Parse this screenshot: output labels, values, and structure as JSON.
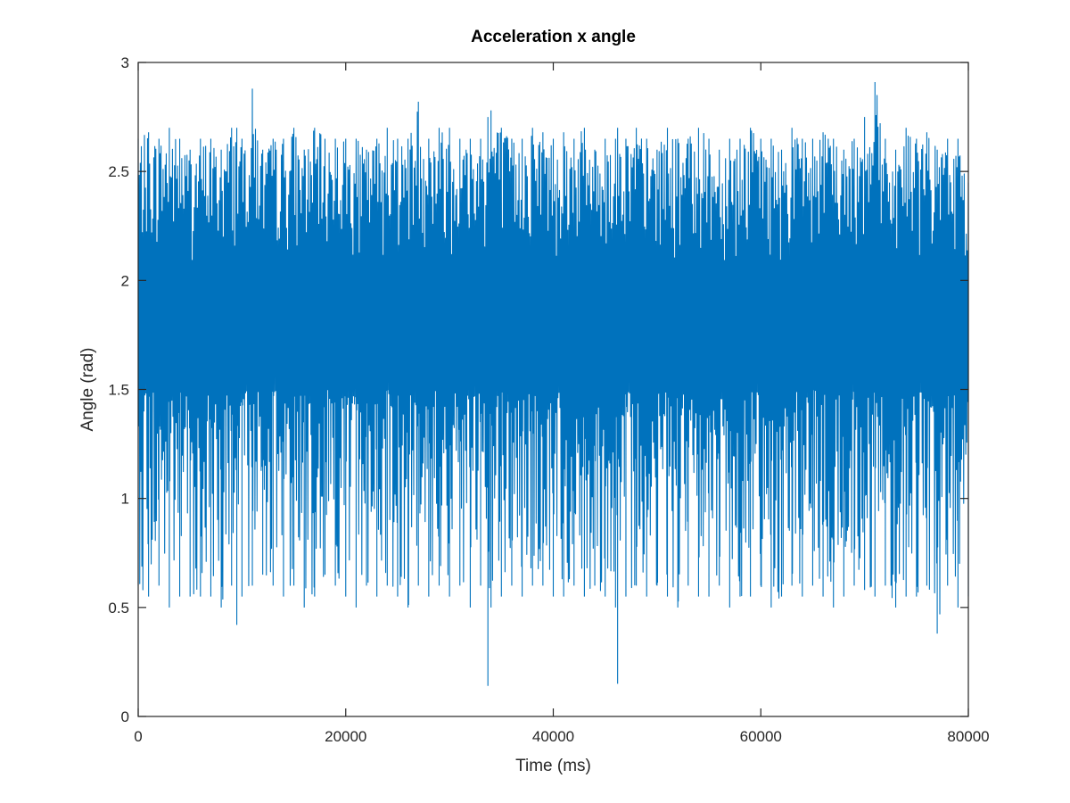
{
  "chart_data": {
    "type": "line",
    "title": "Acceleration x angle",
    "xlabel": "Time (ms)",
    "ylabel": "Angle (rad)",
    "xlim": [
      0,
      80000
    ],
    "ylim": [
      0,
      3
    ],
    "x_ticks": [
      0,
      20000,
      40000,
      60000,
      80000
    ],
    "x_tick_labels": [
      "0",
      "20000",
      "40000",
      "60000",
      "80000"
    ],
    "y_ticks": [
      0,
      0.5,
      1,
      1.5,
      2,
      2.5,
      3
    ],
    "y_tick_labels": [
      "0",
      "0.5",
      "1",
      "1.5",
      "2",
      "2.5",
      "3"
    ],
    "grid": false,
    "legend": "none",
    "series_color": "#0072BD",
    "series": [
      {
        "x": [
          0,
          1000,
          2000,
          3000,
          4000,
          5000,
          6000,
          7000,
          8000,
          9000,
          9500,
          10000,
          11000,
          12000,
          13000,
          14000,
          15000,
          16000,
          17000,
          18000,
          19000,
          20000,
          21000,
          22000,
          23000,
          24000,
          25000,
          26000,
          27000,
          28000,
          29000,
          30000,
          31000,
          32000,
          33000,
          33700,
          34000,
          35000,
          36000,
          37000,
          38000,
          39000,
          40000,
          41000,
          42000,
          43000,
          44000,
          45000,
          46000,
          46200,
          47000,
          48000,
          49000,
          50000,
          51000,
          52000,
          53000,
          54000,
          55000,
          56000,
          57000,
          58000,
          59000,
          60000,
          61000,
          62000,
          63000,
          64000,
          65000,
          66000,
          67000,
          68000,
          69000,
          70000,
          71000,
          72000,
          73000,
          74000,
          75000,
          76000,
          77000,
          78000,
          79000,
          80000
        ],
        "y_min": [
          0.6,
          0.55,
          0.6,
          0.5,
          0.55,
          0.55,
          0.55,
          0.55,
          0.5,
          0.6,
          0.42,
          0.55,
          0.6,
          0.65,
          0.6,
          0.55,
          0.6,
          0.5,
          0.55,
          0.65,
          0.6,
          0.55,
          0.5,
          0.6,
          0.55,
          0.6,
          0.55,
          0.5,
          0.6,
          0.55,
          0.6,
          0.55,
          0.6,
          0.5,
          0.6,
          0.14,
          0.5,
          0.55,
          0.6,
          0.55,
          0.6,
          0.6,
          0.55,
          0.55,
          0.6,
          0.55,
          0.6,
          0.55,
          0.5,
          0.15,
          0.55,
          0.6,
          0.55,
          0.6,
          0.55,
          0.5,
          0.6,
          0.55,
          0.55,
          0.6,
          0.5,
          0.55,
          0.55,
          0.6,
          0.5,
          0.55,
          0.6,
          0.55,
          0.6,
          0.55,
          0.5,
          0.55,
          0.6,
          0.58,
          0.55,
          0.6,
          0.5,
          0.55,
          0.55,
          0.6,
          0.38,
          0.6,
          0.5,
          0.55
        ],
        "y_max": [
          2.65,
          2.68,
          2.65,
          2.7,
          2.65,
          2.6,
          2.65,
          2.65,
          2.6,
          2.7,
          2.7,
          2.65,
          2.88,
          2.6,
          2.65,
          2.65,
          2.7,
          2.6,
          2.7,
          2.65,
          2.65,
          2.65,
          2.65,
          2.6,
          2.65,
          2.7,
          2.65,
          2.65,
          2.82,
          2.65,
          2.7,
          2.7,
          2.65,
          2.65,
          2.65,
          2.75,
          2.78,
          2.7,
          2.65,
          2.65,
          2.7,
          2.68,
          2.65,
          2.68,
          2.65,
          2.7,
          2.6,
          2.65,
          2.65,
          2.7,
          2.65,
          2.7,
          2.65,
          2.6,
          2.7,
          2.65,
          2.65,
          2.7,
          2.65,
          2.6,
          2.65,
          2.65,
          2.7,
          2.65,
          2.65,
          2.6,
          2.7,
          2.65,
          2.65,
          2.68,
          2.65,
          2.6,
          2.65,
          2.75,
          2.91,
          2.65,
          2.6,
          2.7,
          2.65,
          2.68,
          2.6,
          2.65,
          2.65,
          2.45
        ],
        "baseline": 1.8
      }
    ]
  }
}
